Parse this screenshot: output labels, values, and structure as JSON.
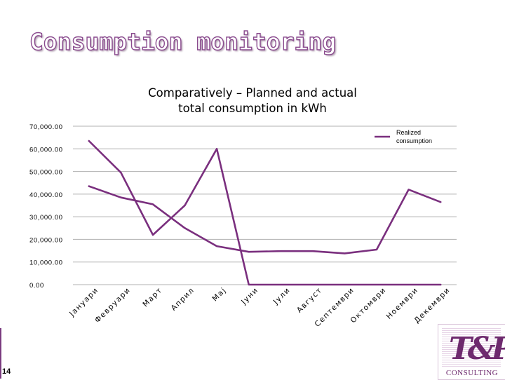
{
  "slide": {
    "title": "Consumption monitoring",
    "page_number": "14"
  },
  "logo": {
    "mark": "T&P",
    "text": "CONSULTING"
  },
  "colors": {
    "series_line": "#7a2f7e",
    "grid": "#b0b0b0",
    "axis_text": "#000000",
    "title_outline": "#8a4b8e"
  },
  "chart_data": {
    "type": "line",
    "title": "Comparatively – Planned and actual total consumption in kWh",
    "title_lines": [
      "Comparatively – Planned and actual",
      "total consumption in kWh"
    ],
    "categories": [
      "Јануари",
      "Февруари",
      "Март",
      "Април",
      "Мај",
      "Јуни",
      "Јули",
      "Август",
      "Септември",
      "Октомври",
      "Ноември",
      "Декември"
    ],
    "series": [
      {
        "name": "Realized consumption",
        "values": [
          63500,
          49500,
          22000,
          35000,
          60000,
          0,
          0,
          0,
          0,
          0,
          0,
          0
        ]
      },
      {
        "name": "",
        "values": [
          43500,
          38500,
          35500,
          25000,
          17000,
          14500,
          14800,
          14800,
          13800,
          15500,
          42000,
          36500
        ]
      }
    ],
    "legend": [
      "Realized",
      "consumption"
    ],
    "y_ticks": [
      "0.00",
      "10,000.00",
      "20,000.00",
      "30,000.00",
      "40,000.00",
      "50,000.00",
      "60,000.00",
      "70,000.00"
    ],
    "ylim": [
      0,
      70000
    ],
    "xlabel": "",
    "ylabel": "",
    "grid": true
  }
}
